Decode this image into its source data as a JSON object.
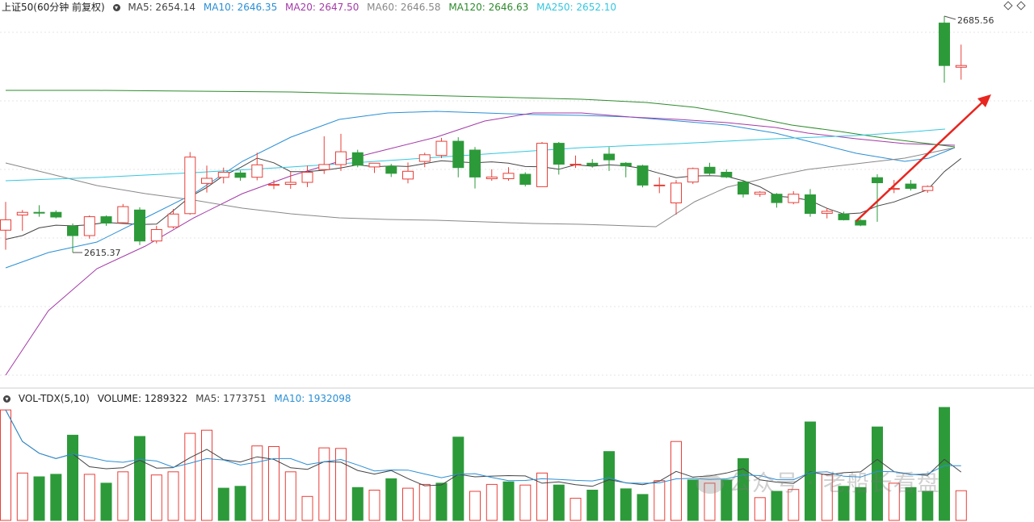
{
  "main_header": {
    "symbol": "上证50(60分钟 前复权)",
    "ma5": "MA5: 2654.14",
    "ma10": "MA10: 2646.35",
    "ma20": "MA20: 2647.50",
    "ma60": "MA60: 2646.58",
    "ma120": "MA120: 2646.63",
    "ma250": "MA250: 2652.10"
  },
  "vol_header": {
    "name": "VOL-TDX(5,10)",
    "volume": "VOLUME: 1289322",
    "ma5": "MA5: 1773751",
    "ma10": "MA10: 1932098"
  },
  "annotations": {
    "low": "2615.37",
    "high": "2685.56"
  },
  "watermark": "公众号 · 老船长看盘",
  "colors": {
    "up": "#e8403a",
    "down": "#2d9a3a",
    "ma5": "#444444",
    "ma10": "#2a8fd6",
    "ma20": "#a33aa8",
    "ma60": "#888888",
    "ma120": "#2e8b2e",
    "ma250": "#33c7e0",
    "arrow": "#e8251f"
  },
  "chart_data": {
    "type": "candlestick",
    "title": "上证50(60分钟 前复权)",
    "candles": [
      {
        "d": "up",
        "o": 2622.0,
        "h": 2630.4,
        "l": 2616.2,
        "c": 2625.1
      },
      {
        "d": "up",
        "o": 2626.5,
        "h": 2628.0,
        "l": 2621.8,
        "c": 2627.3
      },
      {
        "d": "down",
        "o": 2627.3,
        "h": 2629.4,
        "l": 2626.0,
        "c": 2627.1
      },
      {
        "d": "down",
        "o": 2627.3,
        "h": 2627.9,
        "l": 2625.5,
        "c": 2625.9
      },
      {
        "d": "down",
        "o": 2623.2,
        "h": 2624.0,
        "l": 2615.4,
        "c": 2620.4
      },
      {
        "d": "up",
        "o": 2620.4,
        "h": 2626.4,
        "l": 2619.5,
        "c": 2626.0
      },
      {
        "d": "down",
        "o": 2626.0,
        "h": 2626.4,
        "l": 2623.3,
        "c": 2624.1
      },
      {
        "d": "up",
        "o": 2624.2,
        "h": 2629.8,
        "l": 2624.2,
        "c": 2629.0
      },
      {
        "d": "down",
        "o": 2628.0,
        "h": 2628.8,
        "l": 2617.6,
        "c": 2618.8
      },
      {
        "d": "up",
        "o": 2618.8,
        "h": 2623.3,
        "l": 2618.1,
        "c": 2622.2
      },
      {
        "d": "up",
        "o": 2623.0,
        "h": 2628.3,
        "l": 2622.5,
        "c": 2626.8
      },
      {
        "d": "up",
        "o": 2626.9,
        "h": 2645.2,
        "l": 2626.6,
        "c": 2643.7
      },
      {
        "d": "up",
        "o": 2637.4,
        "h": 2641.2,
        "l": 2633.2,
        "c": 2635.9
      },
      {
        "d": "up",
        "o": 2637.7,
        "h": 2640.6,
        "l": 2635.9,
        "c": 2639.2
      },
      {
        "d": "down",
        "o": 2639.0,
        "h": 2639.7,
        "l": 2636.7,
        "c": 2637.7
      },
      {
        "d": "up",
        "o": 2637.7,
        "h": 2645.0,
        "l": 2636.8,
        "c": 2641.4
      },
      {
        "d": "up",
        "o": 2635.4,
        "h": 2636.9,
        "l": 2634.2,
        "c": 2635.6
      },
      {
        "d": "up",
        "o": 2635.6,
        "h": 2639.4,
        "l": 2634.3,
        "c": 2636.2
      },
      {
        "d": "up",
        "o": 2636.2,
        "h": 2641.2,
        "l": 2634.8,
        "c": 2639.2
      },
      {
        "d": "up",
        "o": 2640.0,
        "h": 2649.9,
        "l": 2638.7,
        "c": 2641.5
      },
      {
        "d": "up",
        "o": 2641.5,
        "h": 2650.6,
        "l": 2639.6,
        "c": 2645.3
      },
      {
        "d": "down",
        "o": 2645.0,
        "h": 2645.9,
        "l": 2640.7,
        "c": 2641.3
      },
      {
        "d": "up",
        "o": 2640.8,
        "h": 2641.9,
        "l": 2639.0,
        "c": 2641.9
      },
      {
        "d": "down",
        "o": 2641.0,
        "h": 2641.7,
        "l": 2637.8,
        "c": 2638.9
      },
      {
        "d": "up",
        "o": 2637.2,
        "h": 2642.1,
        "l": 2635.9,
        "c": 2639.5
      },
      {
        "d": "up",
        "o": 2642.4,
        "h": 2645.0,
        "l": 2640.7,
        "c": 2644.4
      },
      {
        "d": "up",
        "o": 2644.2,
        "h": 2649.4,
        "l": 2643.4,
        "c": 2648.4
      },
      {
        "d": "down",
        "o": 2648.4,
        "h": 2649.6,
        "l": 2637.7,
        "c": 2640.6
      },
      {
        "d": "down",
        "o": 2645.8,
        "h": 2646.7,
        "l": 2634.4,
        "c": 2637.8
      },
      {
        "d": "up",
        "o": 2637.3,
        "h": 2640.1,
        "l": 2636.7,
        "c": 2637.8
      },
      {
        "d": "up",
        "o": 2637.3,
        "h": 2640.7,
        "l": 2636.7,
        "c": 2638.9
      },
      {
        "d": "down",
        "o": 2638.6,
        "h": 2639.2,
        "l": 2635.0,
        "c": 2635.6
      },
      {
        "d": "up",
        "o": 2634.9,
        "h": 2648.2,
        "l": 2634.9,
        "c": 2647.8
      },
      {
        "d": "down",
        "o": 2647.8,
        "h": 2648.2,
        "l": 2638.5,
        "c": 2641.6
      },
      {
        "d": "up",
        "o": 2641.6,
        "h": 2644.2,
        "l": 2640.5,
        "c": 2641.6
      },
      {
        "d": "down",
        "o": 2641.9,
        "h": 2643.1,
        "l": 2640.6,
        "c": 2641.3
      },
      {
        "d": "down",
        "o": 2644.6,
        "h": 2646.7,
        "l": 2639.6,
        "c": 2642.9
      },
      {
        "d": "down",
        "o": 2641.9,
        "h": 2642.2,
        "l": 2637.7,
        "c": 2641.1
      },
      {
        "d": "down",
        "o": 2641.1,
        "h": 2641.4,
        "l": 2634.7,
        "c": 2635.4
      },
      {
        "d": "up",
        "o": 2635.3,
        "h": 2637.7,
        "l": 2633.0,
        "c": 2635.4
      },
      {
        "d": "up",
        "o": 2630.1,
        "h": 2636.9,
        "l": 2626.6,
        "c": 2636.0
      },
      {
        "d": "up",
        "o": 2636.3,
        "h": 2640.6,
        "l": 2635.7,
        "c": 2640.3
      },
      {
        "d": "down",
        "o": 2640.7,
        "h": 2642.0,
        "l": 2638.4,
        "c": 2638.9
      },
      {
        "d": "down",
        "o": 2639.2,
        "h": 2640.1,
        "l": 2637.5,
        "c": 2637.8
      },
      {
        "d": "down",
        "o": 2636.3,
        "h": 2636.9,
        "l": 2631.7,
        "c": 2632.7
      },
      {
        "d": "up",
        "o": 2632.7,
        "h": 2633.6,
        "l": 2631.9,
        "c": 2633.3
      },
      {
        "d": "down",
        "o": 2632.7,
        "h": 2633.0,
        "l": 2628.7,
        "c": 2630.2
      },
      {
        "d": "up",
        "o": 2630.2,
        "h": 2633.6,
        "l": 2629.7,
        "c": 2632.7
      },
      {
        "d": "down",
        "o": 2632.5,
        "h": 2634.2,
        "l": 2626.0,
        "c": 2627.0
      },
      {
        "d": "up",
        "o": 2627.0,
        "h": 2628.6,
        "l": 2625.5,
        "c": 2627.6
      },
      {
        "d": "down",
        "o": 2626.8,
        "h": 2627.5,
        "l": 2624.9,
        "c": 2625.1
      },
      {
        "d": "down",
        "o": 2624.9,
        "h": 2625.3,
        "l": 2623.2,
        "c": 2623.5
      },
      {
        "d": "down",
        "o": 2637.6,
        "h": 2638.6,
        "l": 2624.5,
        "c": 2636.1
      },
      {
        "d": "up",
        "o": 2634.4,
        "h": 2636.9,
        "l": 2633.0,
        "c": 2634.3
      },
      {
        "d": "down",
        "o": 2635.7,
        "h": 2636.9,
        "l": 2633.8,
        "c": 2634.4
      },
      {
        "d": "up",
        "o": 2633.8,
        "h": 2635.3,
        "l": 2633.1,
        "c": 2635.0
      },
      {
        "d": "down",
        "o": 2683.5,
        "h": 2685.56,
        "l": 2665.8,
        "c": 2670.9
      },
      {
        "d": "up",
        "o": 2670.4,
        "h": 2677.1,
        "l": 2666.7,
        "c": 2670.9
      }
    ],
    "volume": [
      {
        "d": "up",
        "v": 1750000
      },
      {
        "d": "up",
        "v": 750000
      },
      {
        "d": "down",
        "v": 690000
      },
      {
        "d": "down",
        "v": 730000
      },
      {
        "d": "down",
        "v": 1350000
      },
      {
        "d": "up",
        "v": 730000
      },
      {
        "d": "down",
        "v": 590000
      },
      {
        "d": "up",
        "v": 770000
      },
      {
        "d": "down",
        "v": 1330000
      },
      {
        "d": "up",
        "v": 720000
      },
      {
        "d": "up",
        "v": 770000
      },
      {
        "d": "up",
        "v": 1380000
      },
      {
        "d": "up",
        "v": 1430000
      },
      {
        "d": "down",
        "v": 510000
      },
      {
        "d": "down",
        "v": 540000
      },
      {
        "d": "up",
        "v": 1180000
      },
      {
        "d": "up",
        "v": 1170000
      },
      {
        "d": "up",
        "v": 770000
      },
      {
        "d": "up",
        "v": 380000
      },
      {
        "d": "up",
        "v": 1150000
      },
      {
        "d": "up",
        "v": 1140000
      },
      {
        "d": "down",
        "v": 520000
      },
      {
        "d": "up",
        "v": 480000
      },
      {
        "d": "down",
        "v": 660000
      },
      {
        "d": "up",
        "v": 510000
      },
      {
        "d": "up",
        "v": 570000
      },
      {
        "d": "down",
        "v": 590000
      },
      {
        "d": "down",
        "v": 1320000
      },
      {
        "d": "up",
        "v": 460000
      },
      {
        "d": "up",
        "v": 570000
      },
      {
        "d": "down",
        "v": 610000
      },
      {
        "d": "up",
        "v": 560000
      },
      {
        "d": "up",
        "v": 750000
      },
      {
        "d": "down",
        "v": 560000
      },
      {
        "d": "up",
        "v": 350000
      },
      {
        "d": "down",
        "v": 480000
      },
      {
        "d": "down",
        "v": 1090000
      },
      {
        "d": "down",
        "v": 500000
      },
      {
        "d": "down",
        "v": 410000
      },
      {
        "d": "up",
        "v": 630000
      },
      {
        "d": "up",
        "v": 1250000
      },
      {
        "d": "down",
        "v": 640000
      },
      {
        "d": "up",
        "v": 590000
      },
      {
        "d": "down",
        "v": 640000
      },
      {
        "d": "down",
        "v": 980000
      },
      {
        "d": "up",
        "v": 360000
      },
      {
        "d": "down",
        "v": 460000
      },
      {
        "d": "up",
        "v": 490000
      },
      {
        "d": "down",
        "v": 1560000
      },
      {
        "d": "up",
        "v": 730000
      },
      {
        "d": "down",
        "v": 540000
      },
      {
        "d": "down",
        "v": 520000
      },
      {
        "d": "down",
        "v": 1480000
      },
      {
        "d": "up",
        "v": 590000
      },
      {
        "d": "down",
        "v": 520000
      },
      {
        "d": "down",
        "v": 460000
      },
      {
        "d": "down",
        "v": 1790000
      },
      {
        "d": "up",
        "v": 470000
      }
    ],
    "ma_lines": {
      "ma5": [
        2619.3,
        2620.4,
        2622.7,
        2623.5,
        2623.3,
        2623.6,
        2624.3,
        2624.0,
        2623.7,
        2623.8,
        2627.8,
        2631.9,
        2634.7,
        2638.2,
        2640.6,
        2643.4,
        2642.0,
        2639.4,
        2639.4,
        2639.8,
        2640.5,
        2641.4,
        2640.8,
        2641.1,
        2640.9,
        2641.8,
        2642.6,
        2642.3,
        2642.0,
        2642.3,
        2641.9,
        2640.9,
        2640.8,
        2640.1,
        2641.4,
        2641.0,
        2641.4,
        2641.1,
        2640.3,
        2638.9,
        2637.6,
        2638.1,
        2638.2,
        2638.0,
        2636.7,
        2634.9,
        2632.1,
        2631.7,
        2630.8,
        2628.5,
        2626.8,
        2627.1,
        2629.2,
        2630.4,
        2632.2,
        2634.0,
        2639.4,
        2643.3
      ]
    }
  }
}
